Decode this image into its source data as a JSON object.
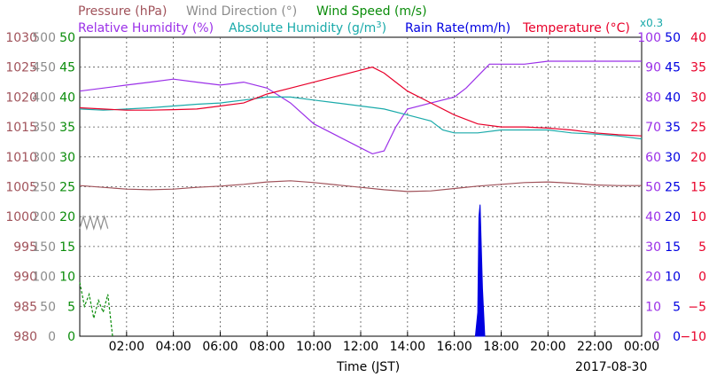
{
  "chart_data": {
    "type": "line",
    "date": "2017-08-30",
    "xlabel": "Time (JST)",
    "x_ticks": [
      "02:00",
      "04:00",
      "06:00",
      "08:00",
      "10:00",
      "12:00",
      "14:00",
      "16:00",
      "18:00",
      "20:00",
      "22:00",
      "00:00"
    ],
    "x_range_hours": [
      0,
      24
    ],
    "grid": true,
    "legend_placement": "top",
    "colors": {
      "pressure": "#a0525a",
      "wind_direction": "#8c8c8c",
      "wind_speed": "#0a8c0a",
      "humidity": "#9b30e8",
      "abs_humidity": "#1aaaaa",
      "rain_rate": "#0000e0",
      "temperature": "#e8002a"
    },
    "legend": {
      "pressure": "Pressure (hPa)",
      "wind_direction": "Wind Direction (°)",
      "wind_speed": "Wind Speed (m/s)",
      "humidity": "Relative Humidity (%)",
      "abs_humidity": "Absolute Humidity (g/m",
      "abs_humidity_sup": "3",
      "abs_humidity_end": ")",
      "rain_rate": "Rain Rate(mm/h)",
      "temperature": "Temperature (°C)",
      "scale_note": "x0.3"
    },
    "axes": {
      "pressure": {
        "ticks": [
          "980",
          "985",
          "990",
          "995",
          "1000",
          "1005",
          "1010",
          "1015",
          "1020",
          "1025",
          "1030"
        ],
        "range": [
          980,
          1030
        ]
      },
      "wind_direction": {
        "ticks": [
          "0",
          "50",
          "100",
          "150",
          "200",
          "250",
          "300",
          "350",
          "400",
          "450",
          "500"
        ],
        "range": [
          0,
          500
        ]
      },
      "wind_speed": {
        "ticks": [
          "0",
          "5",
          "10",
          "15",
          "20",
          "25",
          "30",
          "35",
          "40",
          "45",
          "50"
        ],
        "range": [
          0,
          50
        ]
      },
      "humidity": {
        "ticks": [
          "0",
          "10",
          "20",
          "30",
          "40",
          "50",
          "60",
          "70",
          "80",
          "90",
          "100"
        ],
        "range": [
          0,
          100
        ]
      },
      "rain_rate": {
        "ticks": [
          "0",
          "5",
          "10",
          "15",
          "20",
          "25",
          "30",
          "35",
          "40",
          "45",
          "50"
        ],
        "range": [
          0,
          50
        ]
      },
      "temperature": {
        "ticks": [
          "−10",
          "−5",
          "0",
          "5",
          "10",
          "15",
          "20",
          "25",
          "30",
          "35",
          "40"
        ],
        "range": [
          -10,
          40
        ]
      }
    },
    "series": [
      {
        "name": "Pressure (hPa)",
        "key": "pressure",
        "axis": "pressure",
        "x": [
          0,
          1,
          2,
          3,
          4,
          5,
          6,
          7,
          8,
          9,
          10,
          11,
          12,
          13,
          14,
          15,
          16,
          17,
          18,
          19,
          20,
          21,
          22,
          23,
          24
        ],
        "y": [
          1005.2,
          1004.9,
          1004.6,
          1004.5,
          1004.6,
          1004.9,
          1005.1,
          1005.4,
          1005.8,
          1006.0,
          1005.7,
          1005.3,
          1004.9,
          1004.5,
          1004.2,
          1004.3,
          1004.7,
          1005.1,
          1005.4,
          1005.7,
          1005.8,
          1005.6,
          1005.3,
          1005.2,
          1005.2
        ]
      },
      {
        "name": "Relative Humidity (%)",
        "key": "humidity",
        "axis": "humidity",
        "x": [
          0,
          1,
          2,
          3,
          4,
          5,
          6,
          7,
          8,
          9,
          10,
          11,
          12,
          12.5,
          13,
          13.5,
          14,
          15,
          16,
          16.5,
          17,
          17.5,
          18,
          19,
          20,
          21,
          22,
          23,
          24
        ],
        "y": [
          82,
          83,
          84,
          85,
          86,
          85,
          84,
          85,
          83,
          78,
          71,
          67,
          63,
          61,
          62,
          70,
          76,
          78,
          80,
          83,
          87,
          91,
          91,
          91,
          92,
          92,
          92,
          92,
          92
        ]
      },
      {
        "name": "Absolute Humidity (g/m3)",
        "key": "abs_humidity",
        "axis": "wind_speed",
        "x": [
          0,
          1,
          2,
          3,
          4,
          5,
          6,
          7,
          8,
          9,
          10,
          11,
          12,
          13,
          14,
          15,
          15.5,
          16,
          17,
          18,
          19,
          20,
          21,
          22,
          23,
          24
        ],
        "y": [
          38,
          37.8,
          38,
          38.2,
          38.5,
          38.8,
          39,
          39.5,
          40,
          40,
          39.5,
          39,
          38.5,
          38,
          37,
          36,
          34.5,
          34,
          34,
          34.5,
          34.5,
          34.5,
          34,
          33.8,
          33.5,
          33
        ]
      },
      {
        "name": "Temperature (°C)",
        "key": "temperature",
        "axis": "temperature",
        "x": [
          0,
          1,
          2,
          3,
          4,
          5,
          6,
          7,
          8,
          9,
          10,
          11,
          12,
          12.5,
          13,
          13.5,
          14,
          15,
          16,
          17,
          18,
          19,
          20,
          21,
          22,
          23,
          24
        ],
        "y": [
          28.2,
          28,
          27.8,
          27.8,
          27.9,
          28,
          28.5,
          29,
          30.5,
          31.5,
          32.5,
          33.5,
          34.5,
          35,
          34,
          32.5,
          31,
          29,
          27,
          25.5,
          25,
          25,
          24.8,
          24.5,
          24,
          23.7,
          23.5
        ]
      },
      {
        "name": "Wind Direction (°)",
        "key": "wind_direction",
        "axis": "wind_direction",
        "x": [
          0,
          0.15,
          0.3,
          0.45,
          0.6,
          0.75,
          0.9,
          1.05,
          1.2
        ],
        "y": [
          180,
          200,
          180,
          200,
          180,
          200,
          180,
          200,
          180
        ]
      },
      {
        "name": "Wind Speed (m/s)",
        "key": "wind_speed",
        "axis": "wind_speed",
        "x": [
          0,
          0.2,
          0.4,
          0.6,
          0.8,
          1.0,
          1.2,
          1.4
        ],
        "y": [
          9,
          5,
          7,
          3,
          6,
          4,
          7,
          0
        ]
      },
      {
        "name": "Rain Rate(mm/h)",
        "key": "rain_rate",
        "axis": "rain_rate",
        "x": [
          16.9,
          17.0,
          17.05,
          17.1,
          17.2,
          17.3
        ],
        "y": [
          0,
          4,
          20,
          22,
          8,
          0
        ]
      }
    ]
  }
}
